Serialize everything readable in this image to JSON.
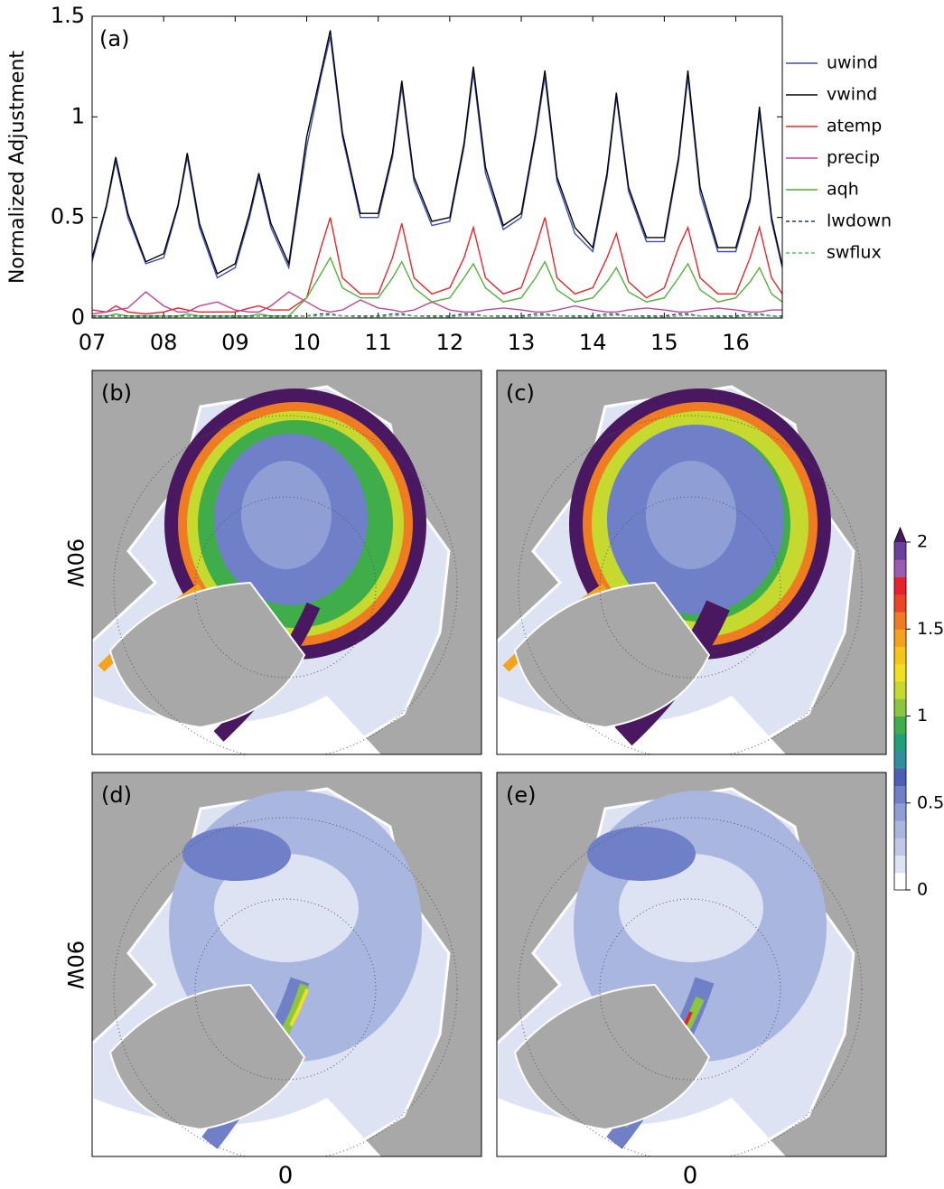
{
  "chart_data": [
    {
      "type": "line",
      "title": "(a)",
      "ylabel": "Normalized Adjustment",
      "x": [
        7,
        7.2,
        7.33,
        7.5,
        7.75,
        8,
        8.2,
        8.33,
        8.5,
        8.75,
        9,
        9.2,
        9.33,
        9.5,
        9.75,
        10,
        10.2,
        10.33,
        10.5,
        10.75,
        11,
        11.2,
        11.33,
        11.5,
        11.75,
        12,
        12.2,
        12.33,
        12.5,
        12.75,
        13,
        13.2,
        13.33,
        13.5,
        13.75,
        14,
        14.2,
        14.33,
        14.5,
        14.75,
        15,
        15.2,
        15.33,
        15.5,
        15.75,
        16,
        16.2,
        16.33,
        16.5,
        16.65
      ],
      "xlim": [
        7,
        16.65
      ],
      "xticks": [
        {
          "value": 7,
          "label": "07"
        },
        {
          "value": 8,
          "label": "08"
        },
        {
          "value": 9,
          "label": "09"
        },
        10,
        11,
        12,
        13,
        14,
        15,
        16
      ],
      "ylim": [
        0,
        1.5
      ],
      "yticks": [
        0,
        0.5,
        1,
        1.5
      ],
      "series": [
        {
          "name": "uwind",
          "color": "#3b4fb0",
          "dashed": false,
          "values": [
            0.28,
            0.55,
            0.78,
            0.5,
            0.27,
            0.3,
            0.55,
            0.8,
            0.45,
            0.2,
            0.25,
            0.5,
            0.7,
            0.45,
            0.25,
            0.85,
            1.2,
            1.4,
            0.9,
            0.5,
            0.5,
            0.8,
            1.15,
            0.68,
            0.46,
            0.48,
            0.85,
            1.22,
            0.72,
            0.44,
            0.5,
            0.9,
            1.2,
            0.68,
            0.42,
            0.33,
            0.7,
            1.1,
            0.63,
            0.38,
            0.38,
            0.78,
            1.2,
            0.62,
            0.33,
            0.33,
            0.58,
            1.02,
            0.48,
            0.25
          ]
        },
        {
          "name": "vwind",
          "color": "#000000",
          "dashed": false,
          "values": [
            0.3,
            0.56,
            0.8,
            0.52,
            0.28,
            0.32,
            0.56,
            0.82,
            0.47,
            0.22,
            0.27,
            0.52,
            0.72,
            0.47,
            0.27,
            0.9,
            1.22,
            1.43,
            0.92,
            0.52,
            0.52,
            0.82,
            1.18,
            0.7,
            0.48,
            0.5,
            0.87,
            1.25,
            0.75,
            0.46,
            0.52,
            0.92,
            1.23,
            0.7,
            0.45,
            0.35,
            0.72,
            1.12,
            0.65,
            0.4,
            0.4,
            0.8,
            1.23,
            0.65,
            0.35,
            0.35,
            0.6,
            1.05,
            0.5,
            0.26
          ]
        },
        {
          "name": "atemp",
          "color": "#e8262a",
          "dashed": false,
          "values": [
            0.04,
            0.03,
            0.06,
            0.03,
            0.02,
            0.03,
            0.05,
            0.04,
            0.03,
            0.03,
            0.03,
            0.05,
            0.06,
            0.04,
            0.04,
            0.1,
            0.35,
            0.5,
            0.2,
            0.12,
            0.12,
            0.3,
            0.47,
            0.2,
            0.12,
            0.15,
            0.3,
            0.45,
            0.2,
            0.12,
            0.15,
            0.35,
            0.5,
            0.2,
            0.12,
            0.15,
            0.3,
            0.42,
            0.18,
            0.1,
            0.15,
            0.35,
            0.45,
            0.2,
            0.12,
            0.12,
            0.3,
            0.45,
            0.2,
            0.12
          ]
        },
        {
          "name": "precip",
          "color": "#c0459a",
          "dashed": false,
          "values": [
            0.02,
            0.03,
            0.04,
            0.05,
            0.13,
            0.06,
            0.03,
            0.03,
            0.06,
            0.08,
            0.04,
            0.03,
            0.03,
            0.06,
            0.13,
            0.08,
            0.04,
            0.03,
            0.04,
            0.09,
            0.05,
            0.04,
            0.03,
            0.04,
            0.08,
            0.04,
            0.03,
            0.03,
            0.04,
            0.05,
            0.04,
            0.03,
            0.03,
            0.04,
            0.06,
            0.04,
            0.03,
            0.03,
            0.04,
            0.05,
            0.04,
            0.03,
            0.03,
            0.04,
            0.05,
            0.04,
            0.03,
            0.03,
            0.04,
            0.04
          ]
        },
        {
          "name": "aqh",
          "color": "#55b03c",
          "dashed": false,
          "values": [
            0.01,
            0.01,
            0.02,
            0.01,
            0.01,
            0.01,
            0.01,
            0.02,
            0.01,
            0.01,
            0.01,
            0.01,
            0.02,
            0.01,
            0.01,
            0.1,
            0.22,
            0.3,
            0.15,
            0.1,
            0.1,
            0.2,
            0.28,
            0.15,
            0.08,
            0.1,
            0.2,
            0.27,
            0.15,
            0.08,
            0.1,
            0.2,
            0.28,
            0.14,
            0.08,
            0.1,
            0.18,
            0.25,
            0.13,
            0.08,
            0.1,
            0.2,
            0.27,
            0.14,
            0.08,
            0.1,
            0.18,
            0.25,
            0.12,
            0.08
          ]
        },
        {
          "name": "lwdown",
          "color": "#1f3a66",
          "dashed": true,
          "values": [
            0.01,
            0.01,
            0.01,
            0.01,
            0.01,
            0.01,
            0.01,
            0.01,
            0.01,
            0.01,
            0.01,
            0.01,
            0.01,
            0.01,
            0.01,
            0.01,
            0.02,
            0.02,
            0.01,
            0.01,
            0.01,
            0.02,
            0.02,
            0.01,
            0.01,
            0.01,
            0.02,
            0.02,
            0.01,
            0.01,
            0.01,
            0.02,
            0.02,
            0.01,
            0.01,
            0.01,
            0.02,
            0.02,
            0.01,
            0.01,
            0.01,
            0.02,
            0.02,
            0.01,
            0.01,
            0.01,
            0.02,
            0.02,
            0.01,
            0.01
          ]
        },
        {
          "name": "swflux",
          "color": "#5bc05b",
          "dashed": true,
          "values": [
            0.005,
            0.005,
            0.01,
            0.005,
            0.005,
            0.005,
            0.005,
            0.01,
            0.005,
            0.005,
            0.005,
            0.005,
            0.01,
            0.005,
            0.005,
            0.01,
            0.01,
            0.015,
            0.01,
            0.005,
            0.005,
            0.01,
            0.015,
            0.01,
            0.005,
            0.005,
            0.01,
            0.015,
            0.01,
            0.005,
            0.005,
            0.01,
            0.015,
            0.01,
            0.005,
            0.005,
            0.01,
            0.015,
            0.01,
            0.005,
            0.005,
            0.01,
            0.015,
            0.01,
            0.005,
            0.005,
            0.01,
            0.015,
            0.01,
            0.005
          ]
        }
      ]
    },
    {
      "type": "map",
      "panels": [
        "(b)",
        "(c)",
        "(d)",
        "(e)"
      ],
      "ylabel": "90W",
      "xlabel": "0",
      "clim": [
        0,
        2
      ],
      "cticks": [
        0,
        0.5,
        1,
        1.5,
        2
      ],
      "colors": [
        "#ffffff",
        "#dde3f2",
        "#c3c7e6",
        "#a9b6df",
        "#8f9fd6",
        "#6f7fc8",
        "#4c5fb5",
        "#2f8fa0",
        "#20a07a",
        "#3fae4a",
        "#8cc63f",
        "#c5d92e",
        "#f0e020",
        "#f7c419",
        "#f5a21c",
        "#f07c22",
        "#ea4524",
        "#e6232a",
        "#9a5bb0",
        "#6a3f9e"
      ],
      "extend_color": "#4a1860",
      "land_color": "#a8a8a8"
    }
  ]
}
